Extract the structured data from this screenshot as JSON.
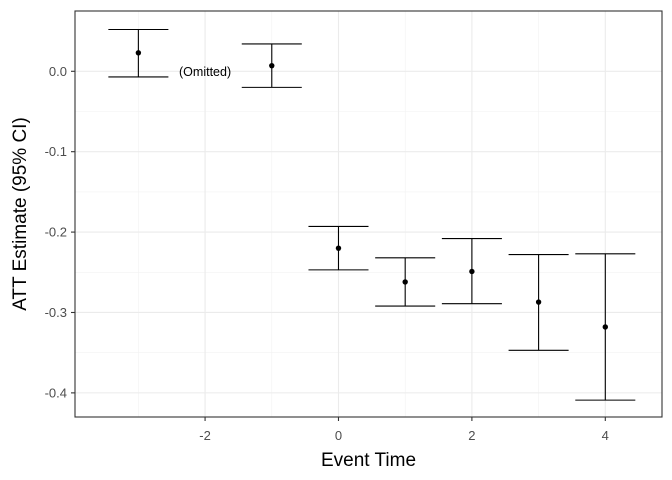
{
  "chart_data": {
    "type": "errorbar",
    "xlabel": "Event Time",
    "ylabel": "ATT Estimate (95% CI)",
    "xlim": [
      -3.95,
      4.85
    ],
    "ylim": [
      -0.43,
      0.075
    ],
    "x_ticks": [
      -2,
      0,
      2,
      4
    ],
    "x_minor_ticks": [
      -3,
      -1,
      1,
      3
    ],
    "y_ticks": [
      0.0,
      -0.1,
      -0.2,
      -0.3,
      -0.4
    ],
    "y_tick_labels": [
      "0.0",
      "-0.1",
      "-0.2",
      "-0.3",
      "-0.4"
    ],
    "grid": true,
    "points": [
      {
        "x": -3,
        "estimate": 0.023,
        "ci_low": -0.007,
        "ci_high": 0.052
      },
      {
        "x": -1,
        "estimate": 0.007,
        "ci_low": -0.02,
        "ci_high": 0.034
      },
      {
        "x": 0,
        "estimate": -0.22,
        "ci_low": -0.247,
        "ci_high": -0.193
      },
      {
        "x": 1,
        "estimate": -0.262,
        "ci_low": -0.292,
        "ci_high": -0.232
      },
      {
        "x": 2,
        "estimate": -0.249,
        "ci_low": -0.289,
        "ci_high": -0.208
      },
      {
        "x": 3,
        "estimate": -0.287,
        "ci_low": -0.347,
        "ci_high": -0.228
      },
      {
        "x": 4,
        "estimate": -0.318,
        "ci_low": -0.409,
        "ci_high": -0.227
      }
    ],
    "annotations": [
      {
        "text": "(Omitted)",
        "x": -2.0,
        "y": 0.0
      }
    ]
  }
}
